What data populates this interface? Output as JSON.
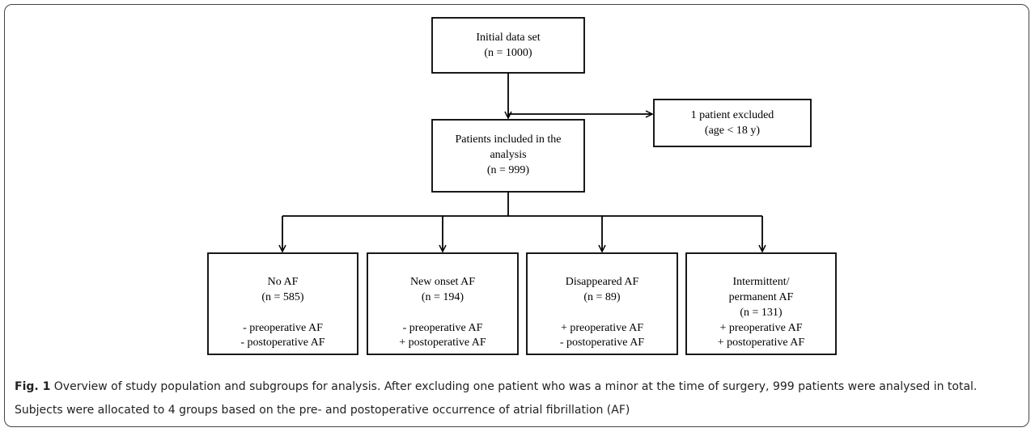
{
  "nodes": [
    {
      "lines": [
        "Initial data set",
        "(n = 1000)"
      ]
    },
    {
      "lines": [
        "1 patient excluded",
        "(age < 18 y)"
      ]
    },
    {
      "lines": [
        "Patients included in the",
        "analysis",
        "(n = 999)"
      ]
    },
    {
      "lines": [
        "No AF",
        "(n = 585)"
      ],
      "criteria": [
        "- preoperative AF",
        "- postoperative AF"
      ]
    },
    {
      "lines": [
        "New onset AF",
        "(n = 194)"
      ],
      "criteria": [
        "- preoperative AF",
        "+ postoperative AF"
      ]
    },
    {
      "lines": [
        "Disappeared AF",
        "(n = 89)"
      ],
      "criteria": [
        "+ preoperative AF",
        "- postoperative AF"
      ]
    },
    {
      "lines": [
        "Intermittent/",
        "permanent AF",
        "(n = 131)"
      ],
      "criteria": [
        "+ preoperative AF",
        "+ postoperative AF"
      ]
    }
  ],
  "caption": {
    "label": "Fig. 1",
    "text": "Overview of study population and subgroups for analysis. After excluding one patient who was a minor at the time of surgery, 999 patients were analysed in total. Subjects were allocated to 4 groups based on the pre- and postoperative occurrence of atrial fibrillation (AF)"
  }
}
